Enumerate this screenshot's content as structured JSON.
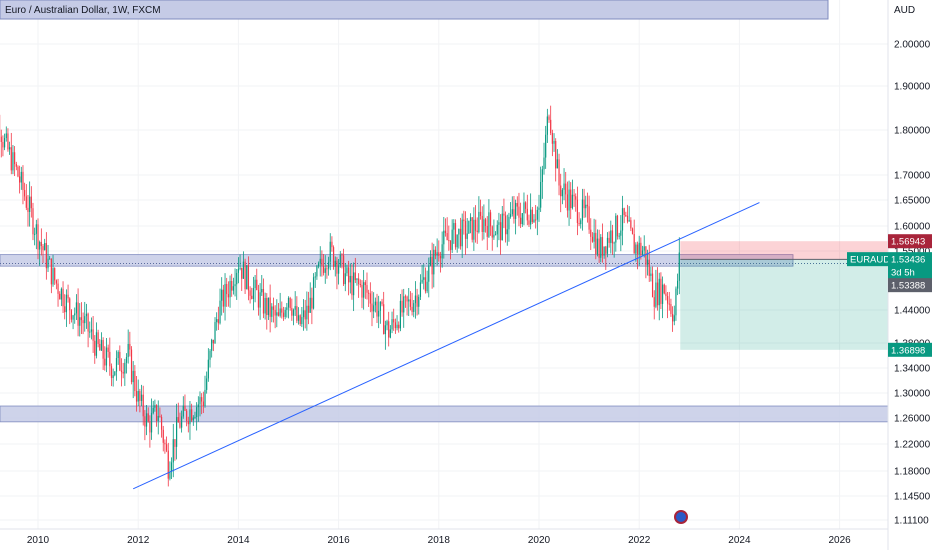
{
  "header": {
    "title": "Euro / Australian Dollar, 1W, FXCM"
  },
  "chart_data": {
    "type": "candlestick",
    "symbol": "EURAUD",
    "currency": "AUD",
    "timeframe": "1W",
    "source": "FXCM",
    "x_ticks": [
      "2010",
      "2012",
      "2014",
      "2016",
      "2018",
      "2020",
      "2022",
      "2024",
      "2026"
    ],
    "y_ticks": [
      "2.00000",
      "1.90000",
      "1.80000",
      "1.70000",
      "1.65000",
      "1.60000",
      "1.55000",
      "1.44000",
      "1.38000",
      "1.34000",
      "1.30000",
      "1.26000",
      "1.22000",
      "1.18000",
      "1.14500",
      "1.11100"
    ],
    "series": [
      {
        "t": 2009.0,
        "c": 1.93
      },
      {
        "t": 2009.3,
        "c": 1.78
      },
      {
        "t": 2009.6,
        "c": 1.7
      },
      {
        "t": 2009.8,
        "c": 1.64
      },
      {
        "t": 2010.0,
        "c": 1.58
      },
      {
        "t": 2010.3,
        "c": 1.5
      },
      {
        "t": 2010.6,
        "c": 1.45
      },
      {
        "t": 2010.9,
        "c": 1.42
      },
      {
        "t": 2011.2,
        "c": 1.37
      },
      {
        "t": 2011.5,
        "c": 1.34
      },
      {
        "t": 2011.8,
        "c": 1.36
      },
      {
        "t": 2012.0,
        "c": 1.29
      },
      {
        "t": 2012.2,
        "c": 1.25
      },
      {
        "t": 2012.4,
        "c": 1.27
      },
      {
        "t": 2012.6,
        "c": 1.19
      },
      {
        "t": 2012.8,
        "c": 1.25
      },
      {
        "t": 2013.0,
        "c": 1.27
      },
      {
        "t": 2013.3,
        "c": 1.29
      },
      {
        "t": 2013.6,
        "c": 1.44
      },
      {
        "t": 2013.8,
        "c": 1.48
      },
      {
        "t": 2014.0,
        "c": 1.53
      },
      {
        "t": 2014.2,
        "c": 1.49
      },
      {
        "t": 2014.5,
        "c": 1.45
      },
      {
        "t": 2014.8,
        "c": 1.42
      },
      {
        "t": 2015.0,
        "c": 1.47
      },
      {
        "t": 2015.2,
        "c": 1.41
      },
      {
        "t": 2015.4,
        "c": 1.44
      },
      {
        "t": 2015.6,
        "c": 1.51
      },
      {
        "t": 2015.8,
        "c": 1.55
      },
      {
        "t": 2016.0,
        "c": 1.53
      },
      {
        "t": 2016.2,
        "c": 1.49
      },
      {
        "t": 2016.5,
        "c": 1.48
      },
      {
        "t": 2016.8,
        "c": 1.44
      },
      {
        "t": 2017.0,
        "c": 1.4
      },
      {
        "t": 2017.2,
        "c": 1.43
      },
      {
        "t": 2017.5,
        "c": 1.46
      },
      {
        "t": 2017.8,
        "c": 1.51
      },
      {
        "t": 2018.0,
        "c": 1.56
      },
      {
        "t": 2018.3,
        "c": 1.58
      },
      {
        "t": 2018.6,
        "c": 1.59
      },
      {
        "t": 2018.9,
        "c": 1.61
      },
      {
        "t": 2019.2,
        "c": 1.59
      },
      {
        "t": 2019.5,
        "c": 1.62
      },
      {
        "t": 2019.8,
        "c": 1.63
      },
      {
        "t": 2020.0,
        "c": 1.63
      },
      {
        "t": 2020.2,
        "c": 1.85
      },
      {
        "t": 2020.4,
        "c": 1.68
      },
      {
        "t": 2020.7,
        "c": 1.64
      },
      {
        "t": 2021.0,
        "c": 1.61
      },
      {
        "t": 2021.2,
        "c": 1.55
      },
      {
        "t": 2021.4,
        "c": 1.58
      },
      {
        "t": 2021.7,
        "c": 1.61
      },
      {
        "t": 2021.9,
        "c": 1.56
      },
      {
        "t": 2022.1,
        "c": 1.55
      },
      {
        "t": 2022.3,
        "c": 1.47
      },
      {
        "t": 2022.5,
        "c": 1.48
      },
      {
        "t": 2022.7,
        "c": 1.43
      },
      {
        "t": 2022.8,
        "c": 1.53
      }
    ],
    "trendline": {
      "from": {
        "t": 2011.9,
        "v": 1.155
      },
      "to": {
        "t": 2024.4,
        "v": 1.645
      }
    },
    "support_zones": [
      {
        "from": 1.521,
        "to": 1.543
      },
      {
        "from": 1.254,
        "to": 1.279
      }
    ],
    "dotted_level": 1.526,
    "position_tool": {
      "start": 2022.82,
      "end": 2025.0,
      "entry": 1.5339,
      "stop": 1.5694,
      "target": 1.369
    },
    "price_tags": [
      {
        "label": "1.56943",
        "value": 1.5694,
        "color": "#a8243a"
      },
      {
        "label": "EURAUD",
        "value": 1.5343,
        "color": "#089981"
      },
      {
        "label": "1.53436",
        "value": 1.5343,
        "color": "#089981"
      },
      {
        "label": "3d 5h",
        "value": 1.5343,
        "color": "#089981"
      },
      {
        "label": "1.53388",
        "value": 1.5339,
        "color": "#5d606b"
      },
      {
        "label": "1.36898",
        "value": 1.369,
        "color": "#089981"
      }
    ],
    "colors": {
      "up": "#089981",
      "down": "#f23645",
      "trend": "#2962ff",
      "zone": "#c5cbe6"
    }
  }
}
